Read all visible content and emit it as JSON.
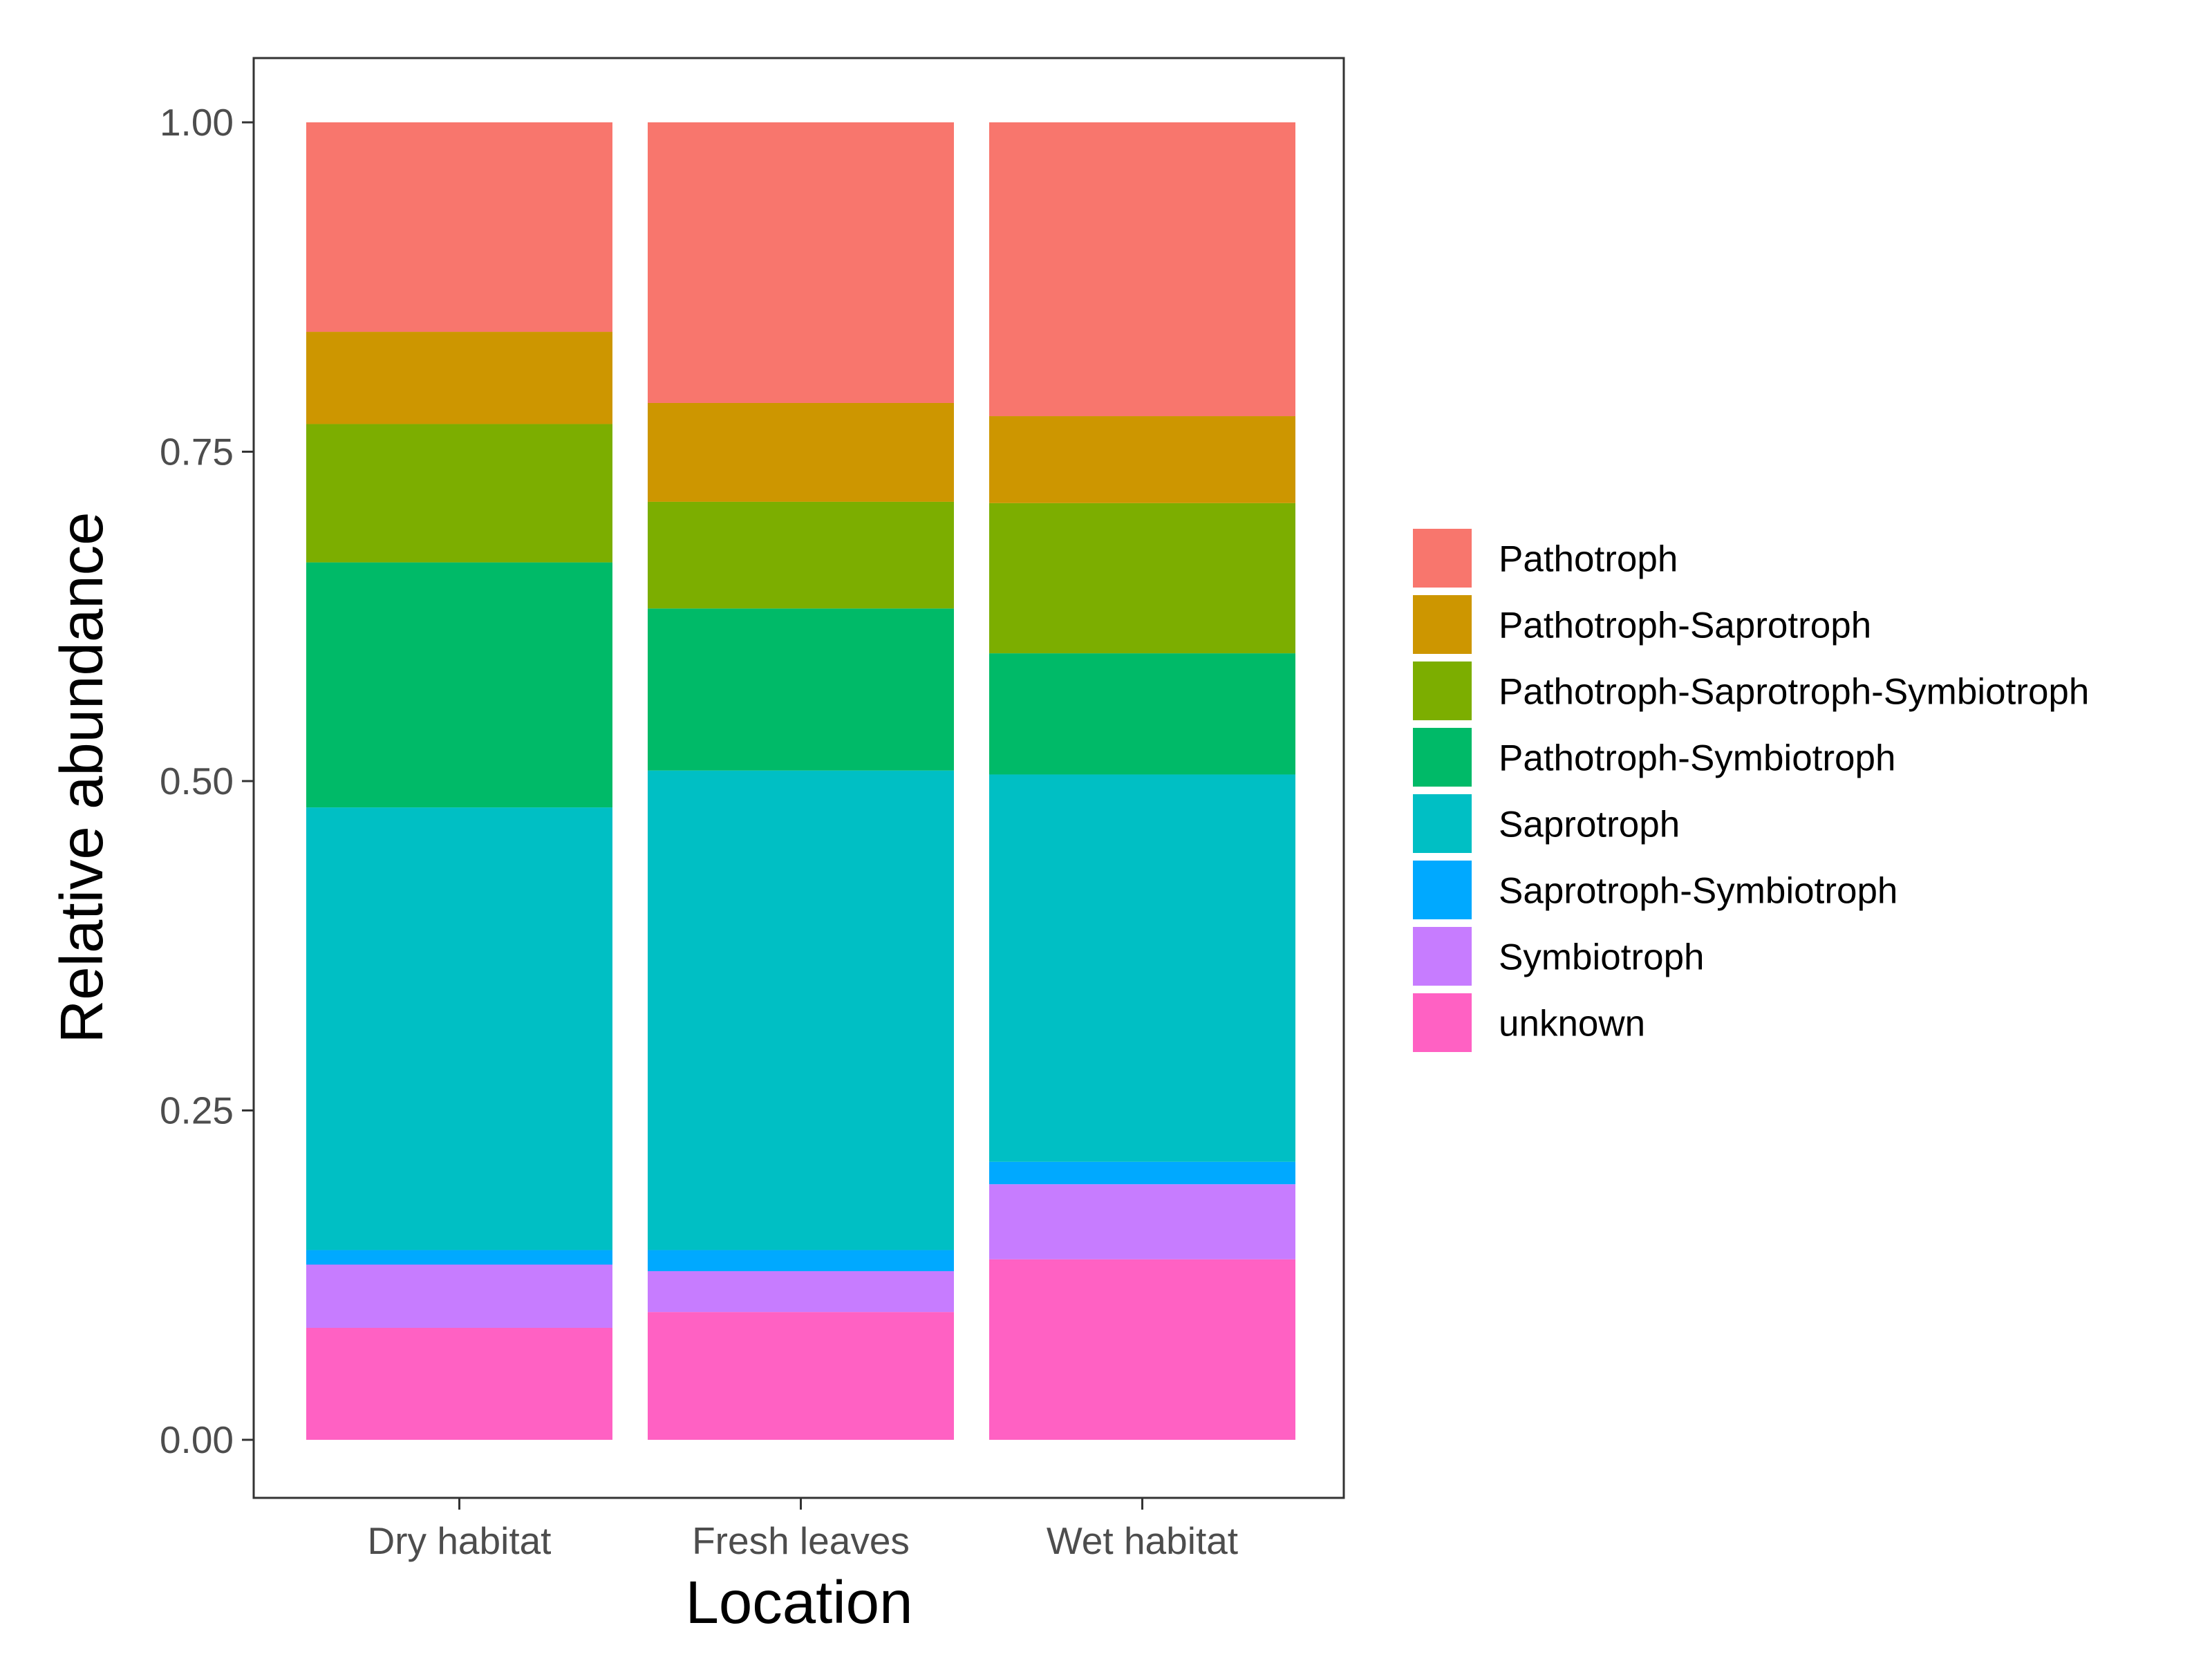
{
  "chart_data": {
    "type": "bar",
    "stacked": true,
    "title": "",
    "xlabel": "Location",
    "ylabel": "Relative abundance",
    "categories": [
      "Dry habitat",
      "Fresh leaves",
      "Wet habitat"
    ],
    "ylim": [
      0,
      1
    ],
    "yticks": [
      "0.00",
      "0.25",
      "0.50",
      "0.75",
      "1.00"
    ],
    "grid": false,
    "legend_position": "right",
    "series": [
      {
        "name": "unknown",
        "color": "#FF61C3",
        "values": [
          0.085,
          0.097,
          0.137
        ]
      },
      {
        "name": "Symbiotroph",
        "color": "#C77CFF",
        "values": [
          0.048,
          0.031,
          0.057
        ]
      },
      {
        "name": "Saprotroph-Symbiotroph",
        "color": "#00A9FF",
        "values": [
          0.011,
          0.016,
          0.017
        ]
      },
      {
        "name": "Saprotroph",
        "color": "#00BFC4",
        "values": [
          0.336,
          0.364,
          0.294
        ]
      },
      {
        "name": "Pathotroph-Symbiotroph",
        "color": "#00BA68",
        "values": [
          0.186,
          0.123,
          0.092
        ]
      },
      {
        "name": "Pathotroph-Saprotroph-Symbiotroph",
        "color": "#7CAE00",
        "values": [
          0.105,
          0.081,
          0.114
        ]
      },
      {
        "name": "Pathotroph-Saprotroph",
        "color": "#CD9600",
        "values": [
          0.07,
          0.075,
          0.066
        ]
      },
      {
        "name": "Pathotroph",
        "color": "#F8766D",
        "values": [
          0.159,
          0.213,
          0.223
        ]
      }
    ],
    "legend_order": [
      "Pathotroph",
      "Pathotroph-Saprotroph",
      "Pathotroph-Saprotroph-Symbiotroph",
      "Pathotroph-Symbiotroph",
      "Saprotroph",
      "Saprotroph-Symbiotroph",
      "Symbiotroph",
      "unknown"
    ]
  }
}
